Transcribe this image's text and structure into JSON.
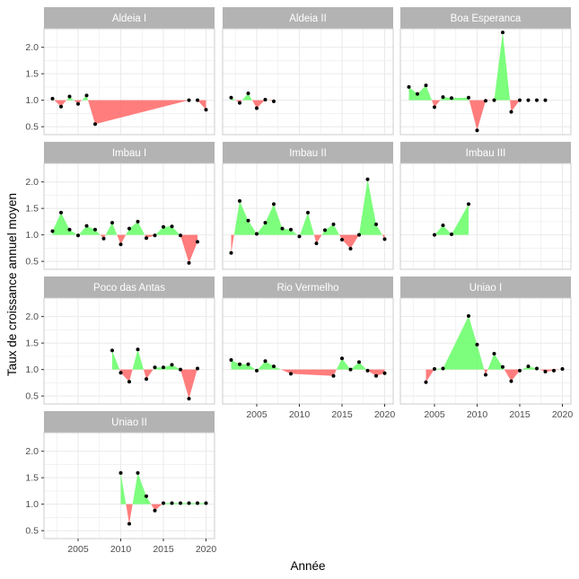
{
  "chart_data": {
    "type": "area",
    "xlabel": "Année",
    "ylabel": "Taux de croissance annuel moyen",
    "xlim": [
      2001,
      2021
    ],
    "ylim": [
      0.35,
      2.35
    ],
    "x_ticks": [
      2005,
      2010,
      2015,
      2020
    ],
    "x_tick_labels": [
      "2005",
      "2010",
      "2015",
      "2020"
    ],
    "y_ticks": [
      0.5,
      1.0,
      1.5,
      2.0
    ],
    "y_tick_labels": [
      "0.5",
      "1.0",
      "1.5",
      "2.0"
    ],
    "baseline": 1.0,
    "grid": true,
    "colors": {
      "above": "#66ff66",
      "below": "#ff6666",
      "point": "#000000",
      "panel_border": "#cccccc",
      "grid": "#ebebeb",
      "strip": "#b3b3b3"
    },
    "panels": [
      {
        "name": "Aldeia I",
        "x": [
          2002,
          2003,
          2004,
          2005,
          2006,
          2007,
          2018,
          2019,
          2020
        ],
        "y": [
          1.03,
          0.88,
          1.07,
          0.93,
          1.09,
          0.55,
          1.0,
          1.0,
          0.82
        ]
      },
      {
        "name": "Aldeia II",
        "x": [
          2002,
          2003,
          2004,
          2005,
          2006,
          2007
        ],
        "y": [
          1.05,
          0.95,
          1.13,
          0.85,
          1.01,
          0.98
        ]
      },
      {
        "name": "Boa Esperanca",
        "x": [
          2002,
          2003,
          2004,
          2005,
          2006,
          2007,
          2009,
          2010,
          2011,
          2012,
          2013,
          2014,
          2015,
          2016,
          2017,
          2018
        ],
        "y": [
          1.25,
          1.12,
          1.28,
          0.87,
          1.06,
          1.04,
          1.05,
          0.43,
          0.99,
          1.0,
          2.28,
          0.78,
          1.0,
          1.0,
          1.0,
          1.0
        ]
      },
      {
        "name": "Imbau I",
        "x": [
          2002,
          2003,
          2004,
          2005,
          2006,
          2007,
          2008,
          2009,
          2010,
          2011,
          2012,
          2013,
          2014,
          2015,
          2016,
          2017,
          2018,
          2019
        ],
        "y": [
          1.07,
          1.42,
          1.1,
          0.99,
          1.17,
          1.1,
          0.93,
          1.23,
          0.82,
          1.12,
          1.25,
          0.94,
          0.99,
          1.15,
          1.16,
          0.99,
          0.47,
          0.87
        ]
      },
      {
        "name": "Imbau II",
        "x": [
          2002,
          2003,
          2004,
          2005,
          2006,
          2007,
          2008,
          2009,
          2010,
          2011,
          2012,
          2013,
          2014,
          2015,
          2016,
          2017,
          2018,
          2019,
          2020
        ],
        "y": [
          0.66,
          1.64,
          1.27,
          1.02,
          1.23,
          1.58,
          1.12,
          1.1,
          0.97,
          1.42,
          0.84,
          1.09,
          1.2,
          0.91,
          0.74,
          1.0,
          2.05,
          1.2,
          0.92
        ]
      },
      {
        "name": "Imbau III",
        "x": [
          2005,
          2006,
          2007,
          2009
        ],
        "y": [
          1.0,
          1.18,
          1.01,
          1.58
        ]
      },
      {
        "name": "Poco das Antas",
        "x": [
          2009,
          2010,
          2011,
          2012,
          2013,
          2014,
          2015,
          2016,
          2017,
          2018,
          2019
        ],
        "y": [
          1.36,
          0.94,
          0.77,
          1.38,
          0.82,
          1.04,
          1.04,
          1.09,
          1.0,
          0.45,
          1.02
        ]
      },
      {
        "name": "Rio Vermelho",
        "x": [
          2002,
          2003,
          2004,
          2005,
          2006,
          2007,
          2009,
          2014,
          2015,
          2016,
          2017,
          2018,
          2019,
          2020
        ],
        "y": [
          1.18,
          1.1,
          1.1,
          0.98,
          1.16,
          1.06,
          0.92,
          0.88,
          1.21,
          1.0,
          1.14,
          0.98,
          0.88,
          0.93
        ]
      },
      {
        "name": "Uniao I",
        "x": [
          2004,
          2005,
          2006,
          2009,
          2010,
          2011,
          2012,
          2013,
          2014,
          2015,
          2016,
          2017,
          2018,
          2019,
          2020
        ],
        "y": [
          0.76,
          1.01,
          1.02,
          2.01,
          1.47,
          0.9,
          1.3,
          1.05,
          0.78,
          0.98,
          1.06,
          1.02,
          0.96,
          0.98,
          1.01
        ]
      },
      {
        "name": "Uniao II",
        "x": [
          2010,
          2011,
          2012,
          2013,
          2014,
          2015,
          2016,
          2017,
          2018,
          2019,
          2020
        ],
        "y": [
          1.59,
          0.63,
          1.59,
          1.15,
          0.88,
          1.02,
          1.02,
          1.02,
          1.02,
          1.02,
          1.02
        ]
      }
    ]
  }
}
